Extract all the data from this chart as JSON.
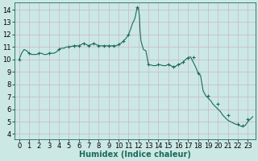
{
  "x": [
    0,
    0.25,
    0.5,
    0.75,
    1,
    1.25,
    1.5,
    1.75,
    2,
    2.25,
    2.5,
    2.75,
    3,
    3.25,
    3.5,
    3.75,
    4,
    4.25,
    4.5,
    4.75,
    5,
    5.25,
    5.5,
    5.75,
    6,
    6.25,
    6.5,
    6.75,
    7,
    7.25,
    7.5,
    7.75,
    8,
    8.25,
    8.5,
    8.75,
    9,
    9.25,
    9.5,
    9.75,
    10,
    10.25,
    10.5,
    10.75,
    11,
    11.2,
    11.4,
    11.6,
    11.7,
    11.8,
    11.85,
    11.9,
    12.0,
    12.1,
    12.15,
    12.25,
    12.5,
    12.75,
    13,
    13.25,
    13.5,
    13.75,
    14,
    14.25,
    14.5,
    14.75,
    15,
    15.25,
    15.5,
    15.75,
    16,
    16.25,
    16.5,
    16.75,
    17,
    17.25,
    17.5,
    17.75,
    18,
    18.25,
    18.5,
    18.75,
    19,
    19.25,
    19.5,
    19.75,
    20,
    20.25,
    20.5,
    20.75,
    21,
    21.25,
    21.5,
    21.75,
    22,
    22.25,
    22.5,
    22.75,
    23,
    23.25,
    23.5
  ],
  "y": [
    10.0,
    10.5,
    10.8,
    10.7,
    10.5,
    10.4,
    10.4,
    10.4,
    10.5,
    10.5,
    10.4,
    10.4,
    10.5,
    10.5,
    10.5,
    10.6,
    10.8,
    10.9,
    10.9,
    11.0,
    11.0,
    11.05,
    11.1,
    11.1,
    11.1,
    11.2,
    11.3,
    11.2,
    11.1,
    11.2,
    11.3,
    11.2,
    11.1,
    11.1,
    11.1,
    11.1,
    11.1,
    11.1,
    11.1,
    11.1,
    11.2,
    11.3,
    11.5,
    11.7,
    12.0,
    12.4,
    12.9,
    13.2,
    13.5,
    13.9,
    14.1,
    14.2,
    14.1,
    13.5,
    12.5,
    11.5,
    10.8,
    10.7,
    9.6,
    9.55,
    9.5,
    9.5,
    9.6,
    9.55,
    9.5,
    9.5,
    9.6,
    9.5,
    9.4,
    9.45,
    9.6,
    9.65,
    9.8,
    10.0,
    10.15,
    10.2,
    9.8,
    9.4,
    8.9,
    8.7,
    7.5,
    7.1,
    6.9,
    6.7,
    6.4,
    6.2,
    6.0,
    5.8,
    5.5,
    5.3,
    5.1,
    5.0,
    4.9,
    4.8,
    4.75,
    4.65,
    4.6,
    4.7,
    5.0,
    5.2,
    5.4
  ],
  "marker_x": [
    0,
    1,
    2,
    3,
    4,
    5,
    5.5,
    6,
    6.5,
    7,
    7.5,
    8,
    8.5,
    9,
    9.5,
    10,
    10.5,
    11,
    11.9,
    13,
    14,
    15,
    15.5,
    16,
    16.5,
    17,
    17.5,
    18,
    19,
    20,
    21,
    22,
    22.5,
    23
  ],
  "marker_y": [
    10.0,
    10.5,
    10.5,
    10.5,
    10.8,
    11.0,
    11.1,
    11.1,
    11.3,
    11.1,
    11.3,
    11.1,
    11.1,
    11.1,
    11.1,
    11.2,
    11.5,
    12.0,
    14.2,
    9.6,
    9.6,
    9.6,
    9.4,
    9.6,
    9.8,
    10.15,
    10.2,
    8.9,
    7.1,
    6.4,
    5.5,
    4.8,
    4.7,
    5.2
  ],
  "line_color": "#1a6b5a",
  "marker_color": "#1a6b5a",
  "bg_color": "#cce8e4",
  "grid_color": "#c8bece",
  "xlabel": "Humidex (Indice chaleur)",
  "xticks": [
    0,
    1,
    2,
    3,
    4,
    5,
    6,
    7,
    8,
    9,
    10,
    11,
    12,
    13,
    14,
    15,
    16,
    17,
    18,
    19,
    20,
    21,
    22,
    23
  ],
  "yticks": [
    4,
    5,
    6,
    7,
    8,
    9,
    10,
    11,
    12,
    13,
    14
  ],
  "xlim": [
    -0.5,
    23.8
  ],
  "ylim": [
    3.6,
    14.6
  ],
  "xlabel_fontsize": 7,
  "tick_fontsize": 6
}
